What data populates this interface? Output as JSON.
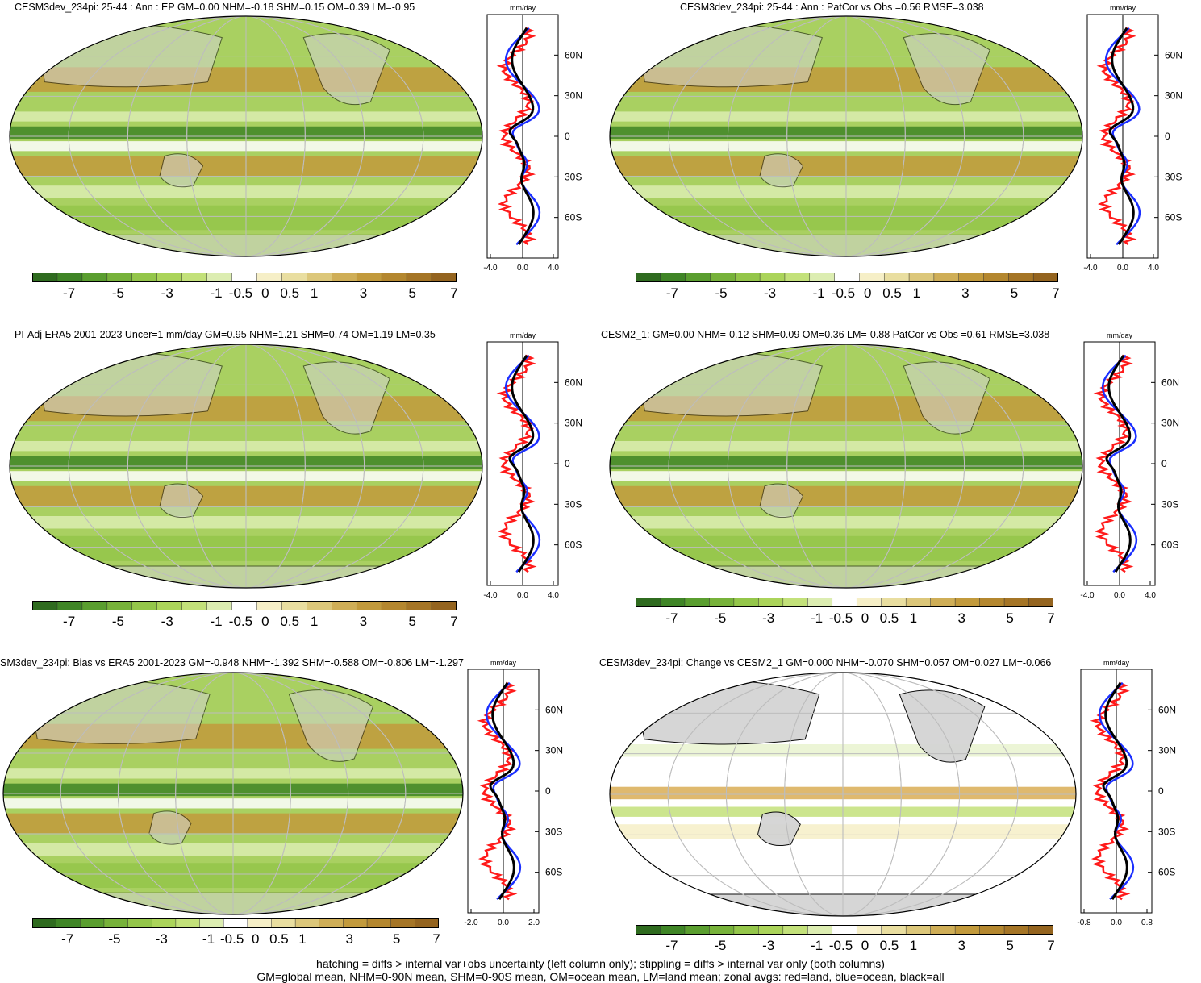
{
  "colors": {
    "colorbar": [
      "#2f6b1f",
      "#3f8526",
      "#5a9e2f",
      "#77b23a",
      "#94c64a",
      "#abd45a",
      "#c3e17a",
      "#dcedb1",
      "#ffffff",
      "#f6efc7",
      "#e9dea0",
      "#dcc77a",
      "#cfae57",
      "#c29a3c",
      "#b4872f",
      "#a57526",
      "#94641f"
    ],
    "ocean_wet": "#8bbf4a",
    "ocean_dry": "#c69a3a",
    "land_mask": "#d4d4d4",
    "curve_land": "#ff1a1a",
    "curve_ocean": "#1a2fff",
    "curve_all": "#000000"
  },
  "colorbar_labels": [
    "-7",
    "-5",
    "-3",
    "-1",
    "-0.5",
    "0",
    "0.5",
    "1",
    "3",
    "5",
    "7"
  ],
  "zonal_lat_labels": [
    "60N",
    "30N",
    "0",
    "30S",
    "60S"
  ],
  "zonal_unit": "mm/day",
  "panels": [
    {
      "title": "CESM3dev_234pi: 25-44 : Ann : EP GM=0.00 NHM=-0.18 SHM=0.15 OM=0.39 LM=-0.95",
      "xticks": [
        "-4.0",
        "0.0",
        "4.0"
      ]
    },
    {
      "title": "CESM3dev_234pi: 25-44 : Ann : PatCor vs Obs =0.56 RMSE=3.038",
      "xticks": [
        "-4.0",
        "0.0",
        "4.0"
      ]
    },
    {
      "title": "PI-Adj ERA5 2001-2023 Uncer=1 mm/day GM=0.95 NHM=1.21 SHM=0.74 OM=1.19 LM=0.35",
      "xticks": [
        "-4.0",
        "0.0",
        "4.0"
      ]
    },
    {
      "title": "CESM2_1: GM=0.00 NHM=-0.12 SHM=0.09 OM=0.36 LM=-0.88 PatCor vs Obs =0.61 RMSE=3.038",
      "xticks": [
        "-4.0",
        "0.0",
        "4.0"
      ]
    },
    {
      "title": "SM3dev_234pi: Bias vs ERA5 2001-2023 GM=-0.948 NHM=-1.392 SHM=-0.588 OM=-0.806 LM=-1.297",
      "xticks": [
        "-2.0",
        "0.0",
        "2.0"
      ]
    },
    {
      "title": "CESM3dev_234pi: Change vs CESM2_1 GM=0.000 NHM=-0.070 SHM=0.057 OM=0.027 LM=-0.066",
      "xticks": [
        "-0.8",
        "0.0",
        "0.8"
      ]
    }
  ],
  "footer": {
    "line1": "hatching = diffs > internal var+obs uncertainty (left column only); stippling = diffs > internal var only (both columns)",
    "line2": "GM=global mean, NHM=0-90N mean, SHM=0-90S mean, OM=ocean mean, LM=land mean; zonal avgs: red=land, blue=ocean, black=all"
  }
}
